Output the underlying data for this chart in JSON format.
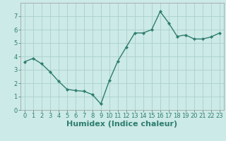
{
  "x": [
    0,
    1,
    2,
    3,
    4,
    5,
    6,
    7,
    8,
    9,
    10,
    11,
    12,
    13,
    14,
    15,
    16,
    17,
    18,
    19,
    20,
    21,
    22,
    23
  ],
  "y": [
    3.6,
    3.85,
    3.45,
    2.85,
    2.15,
    1.55,
    1.45,
    1.4,
    1.15,
    0.45,
    2.2,
    3.65,
    4.7,
    5.75,
    5.75,
    6.0,
    7.35,
    6.5,
    5.5,
    5.6,
    5.3,
    5.3,
    5.45,
    5.75
  ],
  "line_color": "#2e7d6e",
  "marker": "D",
  "marker_size": 2.2,
  "line_width": 1.0,
  "bg_color": "#cceae7",
  "grid_color": "#aad0cc",
  "xlabel": "Humidex (Indice chaleur)",
  "xlabel_fontsize": 8,
  "tick_fontsize": 6,
  "xlim": [
    -0.5,
    23.5
  ],
  "ylim": [
    0,
    8
  ],
  "yticks": [
    0,
    1,
    2,
    3,
    4,
    5,
    6,
    7
  ],
  "xticks": [
    0,
    1,
    2,
    3,
    4,
    5,
    6,
    7,
    8,
    9,
    10,
    11,
    12,
    13,
    14,
    15,
    16,
    17,
    18,
    19,
    20,
    21,
    22,
    23
  ]
}
